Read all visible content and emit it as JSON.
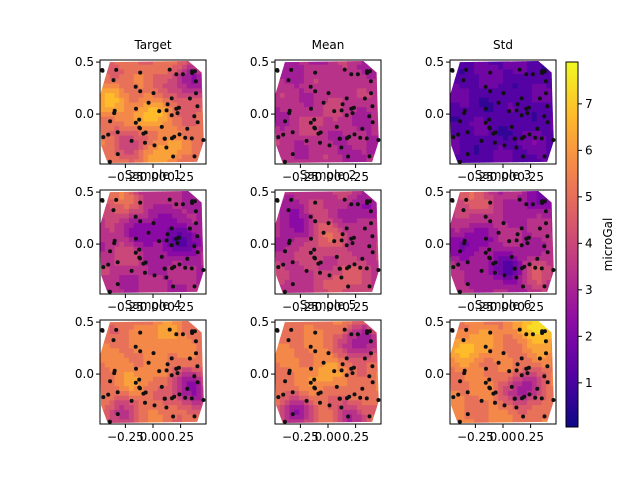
{
  "chart_data": {
    "type": "heatmap",
    "kind": "tricontourf grid with scatter stations",
    "colormap": "plasma",
    "colorbar": {
      "label": "microGal",
      "range": [
        0.05,
        7.9
      ],
      "ticks": [
        1,
        2,
        3,
        4,
        5,
        6,
        7
      ],
      "tick_labels": [
        "1",
        "2",
        "3",
        "4",
        "5",
        "6",
        "7"
      ]
    },
    "axes_ranges": {
      "x": [
        -0.48,
        0.48
      ],
      "y": [
        -0.48,
        0.52
      ]
    },
    "x_ticks": [
      -0.25,
      0.0,
      0.25
    ],
    "x_tick_labels": [
      "−0.25",
      "0.00",
      "0.25"
    ],
    "y_ticks": [
      0.5,
      0.0
    ],
    "y_tick_labels": [
      "0.5",
      "0.0"
    ],
    "panels": [
      {
        "title": "Target",
        "mean": 5.0,
        "hot": [
          [
            -0.05,
            -0.05,
            2.2
          ],
          [
            -0.4,
            0.1,
            1.5
          ],
          [
            0.1,
            -0.38,
            1.4
          ]
        ],
        "cold": [
          [
            0.35,
            0.3,
            2.5
          ],
          [
            -0.15,
            -0.2,
            1.5
          ]
        ]
      },
      {
        "title": "Mean",
        "mean": 3.3,
        "hot": [
          [
            -0.1,
            -0.1,
            0.5
          ],
          [
            0.1,
            0.2,
            0.4
          ]
        ],
        "cold": [
          [
            0.25,
            -0.3,
            0.4
          ],
          [
            -0.3,
            0.4,
            0.3
          ]
        ]
      },
      {
        "title": "Std",
        "mean": 1.3,
        "hot": [
          [
            -0.1,
            0.45,
            0.3
          ],
          [
            0.3,
            -0.3,
            0.3
          ]
        ],
        "cold": [
          [
            0.0,
            0.0,
            0.3
          ]
        ]
      },
      {
        "title": "Sample 1",
        "mean": 3.2,
        "hot": [
          [
            -0.3,
            0.45,
            2.4
          ],
          [
            -0.3,
            -0.1,
            0.8
          ]
        ],
        "cold": [
          [
            0.25,
            0.05,
            1.8
          ],
          [
            -0.05,
            0.1,
            1.0
          ]
        ]
      },
      {
        "title": "Sample 2",
        "mean": 3.6,
        "hot": [
          [
            -0.05,
            0.1,
            1.2
          ],
          [
            0.15,
            -0.35,
            1.0
          ]
        ],
        "cold": [
          [
            -0.3,
            0.2,
            1.5
          ],
          [
            0.3,
            0.3,
            1.0
          ]
        ]
      },
      {
        "title": "Sample 3",
        "mean": 3.2,
        "hot": [
          [
            -0.3,
            0.45,
            1.8
          ],
          [
            0.3,
            -0.3,
            1.2
          ]
        ],
        "cold": [
          [
            0.05,
            -0.25,
            1.8
          ],
          [
            -0.3,
            0.0,
            1.2
          ],
          [
            0.3,
            0.45,
            1.0
          ]
        ]
      },
      {
        "title": "Sample 4",
        "mean": 5.2,
        "hot": [
          [
            0.1,
            0.35,
            1.0
          ],
          [
            -0.2,
            0.0,
            0.8
          ]
        ],
        "cold": [
          [
            0.35,
            -0.15,
            2.8
          ],
          [
            -0.3,
            -0.4,
            1.5
          ]
        ]
      },
      {
        "title": "Sample 5",
        "mean": 5.3,
        "hot": [
          [
            -0.05,
            0.0,
            0.8
          ]
        ],
        "cold": [
          [
            0.3,
            0.3,
            2.8
          ],
          [
            -0.3,
            -0.38,
            2.5
          ],
          [
            0.2,
            -0.4,
            2.0
          ]
        ]
      },
      {
        "title": "Sample 6",
        "mean": 5.4,
        "hot": [
          [
            0.35,
            0.45,
            2.4
          ],
          [
            -0.3,
            0.25,
            1.2
          ]
        ],
        "cold": [
          [
            0.2,
            -0.15,
            2.6
          ]
        ]
      }
    ]
  }
}
